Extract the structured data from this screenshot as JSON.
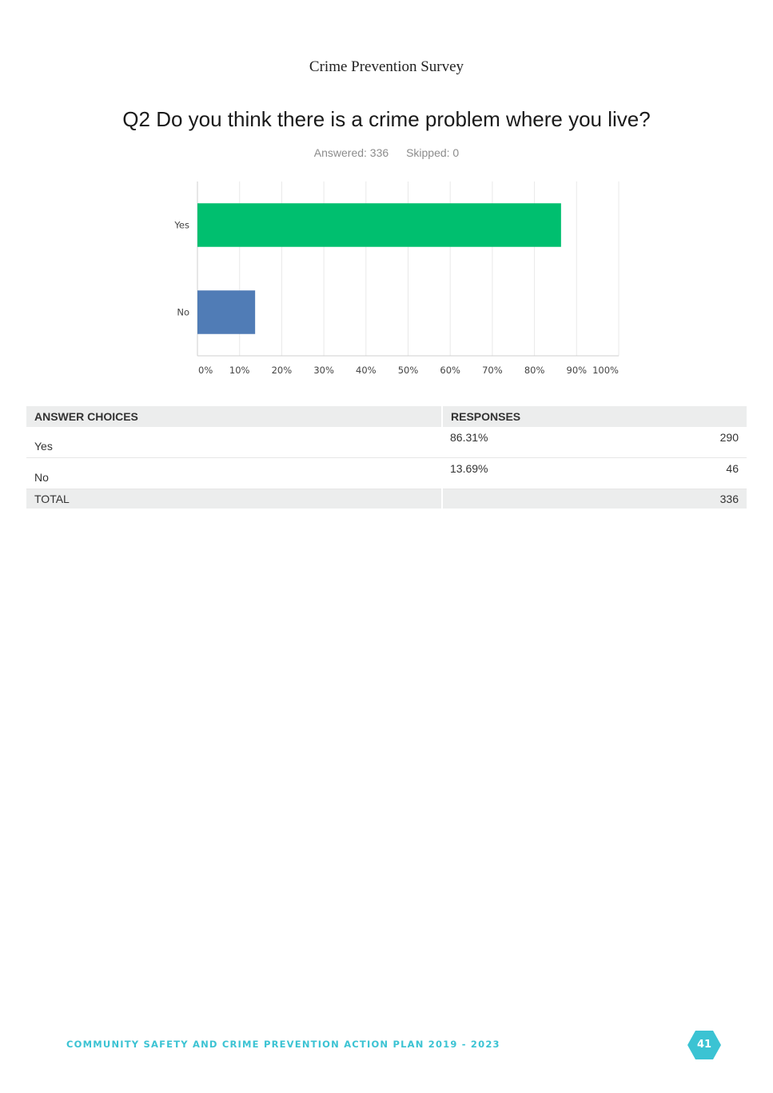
{
  "doc_header": "Crime Prevention Survey",
  "question": "Q2 Do you think there is a crime problem where you live?",
  "stats": {
    "answered": "Answered: 336",
    "skipped": "Skipped: 0"
  },
  "chart_data": {
    "type": "bar",
    "orientation": "horizontal",
    "categories": [
      "Yes",
      "No"
    ],
    "values": [
      86.31,
      13.69
    ],
    "colors": [
      "#00bf6f",
      "#507cb6"
    ],
    "xlim": [
      0,
      100
    ],
    "x_ticks": [
      "0%",
      "10%",
      "20%",
      "30%",
      "40%",
      "50%",
      "60%",
      "70%",
      "80%",
      "90%",
      "100%"
    ],
    "grid": true,
    "title": "",
    "xlabel": "",
    "ylabel": ""
  },
  "table": {
    "headers": [
      "ANSWER CHOICES",
      "RESPONSES"
    ],
    "rows": [
      {
        "choice": "Yes",
        "percent": "86.31%",
        "count": "290"
      },
      {
        "choice": "No",
        "percent": "13.69%",
        "count": "46"
      }
    ],
    "total": {
      "label": "TOTAL",
      "count": "336"
    }
  },
  "footer": {
    "text": "COMMUNITY SAFETY AND CRIME PREVENTION ACTION PLAN 2019 - 2023",
    "page": "41",
    "badge_color": "#3bc3d3",
    "badge_icon": "hexagon-badge"
  }
}
